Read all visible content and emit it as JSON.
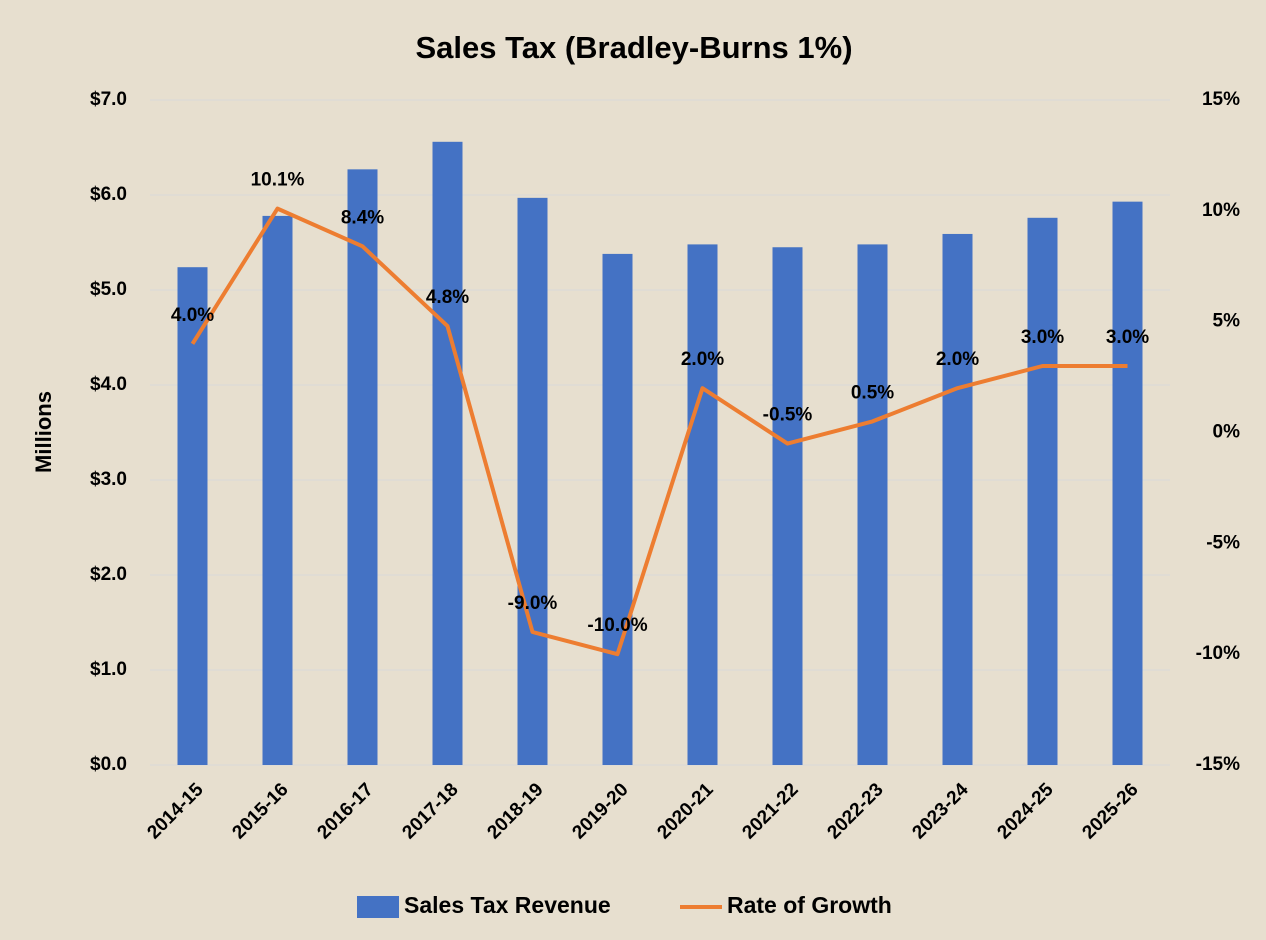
{
  "chart_data": {
    "type": "bar",
    "title": "Sales Tax (Bradley-Burns 1%)",
    "y_label": "Millions",
    "categories": [
      "2014-15",
      "2015-16",
      "2016-17",
      "2017-18",
      "2018-19",
      "2019-20",
      "2020-21",
      "2021-22",
      "2022-23",
      "2023-24",
      "2024-25",
      "2025-26"
    ],
    "series": [
      {
        "name": "Sales Tax Revenue",
        "type": "bar",
        "color": "#4472c4",
        "values": [
          5.24,
          5.78,
          6.27,
          6.56,
          5.97,
          5.38,
          5.48,
          5.45,
          5.48,
          5.59,
          5.76,
          5.93
        ]
      },
      {
        "name": "Rate of Growth",
        "type": "line",
        "axis": "y2",
        "color": "#ed7d31",
        "values": [
          4.0,
          10.1,
          8.4,
          4.8,
          -9.0,
          -10.0,
          2.0,
          -0.5,
          0.5,
          2.0,
          3.0,
          3.0
        ],
        "value_labels": [
          "4.0%",
          "10.1%",
          "8.4%",
          "4.8%",
          "-9.0%",
          "-10.0%",
          "2.0%",
          "-0.5%",
          "0.5%",
          "2.0%",
          "3.0%",
          "3.0%"
        ]
      }
    ],
    "ylim": [
      0,
      7
    ],
    "yticks": [
      {
        "value": 0,
        "label": "$0.0"
      },
      {
        "value": 1,
        "label": "$1.0"
      },
      {
        "value": 2,
        "label": "$2.0"
      },
      {
        "value": 3,
        "label": "$3.0"
      },
      {
        "value": 4,
        "label": "$4.0"
      },
      {
        "value": 5,
        "label": "$5.0"
      },
      {
        "value": 6,
        "label": "$6.0"
      },
      {
        "value": 7,
        "label": "$7.0"
      }
    ],
    "y2lim": [
      -15,
      15
    ],
    "y2ticks": [
      {
        "value": -15,
        "label": "-15%"
      },
      {
        "value": -10,
        "label": "-10%"
      },
      {
        "value": -5,
        "label": "-5%"
      },
      {
        "value": 0,
        "label": "0%"
      },
      {
        "value": 5,
        "label": "5%"
      },
      {
        "value": 10,
        "label": "10%"
      },
      {
        "value": 15,
        "label": "15%"
      }
    ],
    "grid": true,
    "legend": "bottom"
  }
}
